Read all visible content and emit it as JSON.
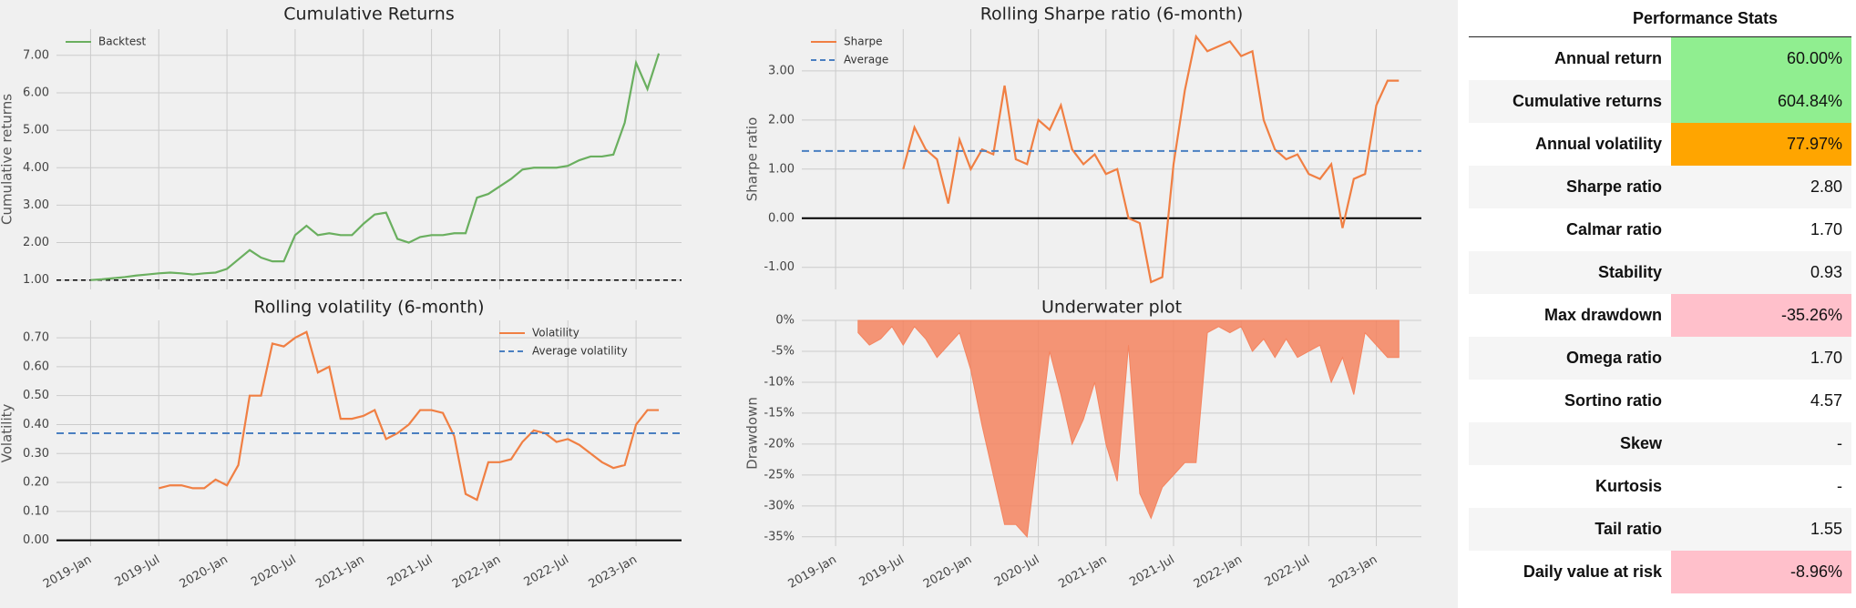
{
  "chart_data": [
    {
      "type": "line",
      "title": "Cumulative Returns",
      "ylabel": "Cumulative returns",
      "legend": "upper left",
      "grid": true,
      "baseline": 1,
      "x": [
        "2019-01",
        "2019-02",
        "2019-03",
        "2019-04",
        "2019-05",
        "2019-06",
        "2019-07",
        "2019-08",
        "2019-09",
        "2019-10",
        "2019-11",
        "2019-12",
        "2020-01",
        "2020-02",
        "2020-03",
        "2020-04",
        "2020-05",
        "2020-06",
        "2020-07",
        "2020-08",
        "2020-09",
        "2020-10",
        "2020-11",
        "2020-12",
        "2021-01",
        "2021-02",
        "2021-03",
        "2021-04",
        "2021-05",
        "2021-06",
        "2021-07",
        "2021-08",
        "2021-09",
        "2021-10",
        "2021-11",
        "2021-12",
        "2022-01",
        "2022-02",
        "2022-03",
        "2022-04",
        "2022-05",
        "2022-06",
        "2022-07",
        "2022-08",
        "2022-09",
        "2022-10",
        "2022-11",
        "2022-12",
        "2023-01",
        "2023-02",
        "2023-03"
      ],
      "series": [
        {
          "name": "Backtest",
          "color": "#6aaf5f",
          "values": [
            1.0,
            1.02,
            1.05,
            1.08,
            1.12,
            1.15,
            1.18,
            1.2,
            1.18,
            1.15,
            1.18,
            1.2,
            1.3,
            1.55,
            1.8,
            1.6,
            1.5,
            1.5,
            2.2,
            2.45,
            2.2,
            2.25,
            2.2,
            2.2,
            2.5,
            2.75,
            2.8,
            2.1,
            2.0,
            2.15,
            2.2,
            2.2,
            2.25,
            2.25,
            3.2,
            3.3,
            3.5,
            3.7,
            3.95,
            4.0,
            4.0,
            4.0,
            4.05,
            4.2,
            4.3,
            4.3,
            4.35,
            5.2,
            6.8,
            6.1,
            7.05
          ]
        }
      ],
      "xlim": [
        "2018-10",
        "2023-05"
      ],
      "xticks": [
        "2019-01",
        "2019-07",
        "2020-01",
        "2020-07",
        "2021-01",
        "2021-07",
        "2022-01",
        "2022-07",
        "2023-01"
      ],
      "ylim": [
        0.75,
        7.7
      ],
      "yticks": [
        {
          "value": 1,
          "label": "1.00"
        },
        {
          "value": 2,
          "label": "2.00"
        },
        {
          "value": 3,
          "label": "3.00"
        },
        {
          "value": 4,
          "label": "4.00"
        },
        {
          "value": 5,
          "label": "5.00"
        },
        {
          "value": 6,
          "label": "6.00"
        },
        {
          "value": 7,
          "label": "7.00"
        }
      ]
    },
    {
      "type": "line",
      "title": "Rolling volatility (6-month)",
      "ylabel": "Volatility",
      "legend": "upper right",
      "grid": true,
      "zero_line": true,
      "x": [
        "2019-01",
        "2019-02",
        "2019-03",
        "2019-04",
        "2019-05",
        "2019-06",
        "2019-07",
        "2019-08",
        "2019-09",
        "2019-10",
        "2019-11",
        "2019-12",
        "2020-01",
        "2020-02",
        "2020-03",
        "2020-04",
        "2020-05",
        "2020-06",
        "2020-07",
        "2020-08",
        "2020-09",
        "2020-10",
        "2020-11",
        "2020-12",
        "2021-01",
        "2021-02",
        "2021-03",
        "2021-04",
        "2021-05",
        "2021-06",
        "2021-07",
        "2021-08",
        "2021-09",
        "2021-10",
        "2021-11",
        "2021-12",
        "2022-01",
        "2022-02",
        "2022-03",
        "2022-04",
        "2022-05",
        "2022-06",
        "2022-07",
        "2022-08",
        "2022-09",
        "2022-10",
        "2022-11",
        "2022-12",
        "2023-01",
        "2023-02",
        "2023-03"
      ],
      "series": [
        {
          "name": "Volatility",
          "color": "#f07f43",
          "values": [
            null,
            null,
            null,
            null,
            null,
            null,
            0.18,
            0.19,
            0.19,
            0.18,
            0.18,
            0.21,
            0.19,
            0.26,
            0.5,
            0.5,
            0.68,
            0.67,
            0.7,
            0.72,
            0.58,
            0.6,
            0.42,
            0.42,
            0.43,
            0.45,
            0.35,
            0.37,
            0.4,
            0.45,
            0.45,
            0.44,
            0.36,
            0.16,
            0.14,
            0.27,
            0.27,
            0.28,
            0.34,
            0.38,
            0.37,
            0.34,
            0.35,
            0.33,
            0.3,
            0.27,
            0.25,
            0.26,
            0.4,
            0.45,
            0.45
          ]
        },
        {
          "name": "Average volatility",
          "color": "#4a7fc1",
          "style": "dashed",
          "value": 0.37
        }
      ],
      "xlim": [
        "2018-10",
        "2023-05"
      ],
      "xticks": [
        {
          "value": "2019-01",
          "label": "2019-Jan"
        },
        {
          "value": "2019-07",
          "label": "2019-Jul"
        },
        {
          "value": "2020-01",
          "label": "2020-Jan"
        },
        {
          "value": "2020-07",
          "label": "2020-Jul"
        },
        {
          "value": "2021-01",
          "label": "2021-Jan"
        },
        {
          "value": "2021-07",
          "label": "2021-Jul"
        },
        {
          "value": "2022-01",
          "label": "2022-Jan"
        },
        {
          "value": "2022-07",
          "label": "2022-Jul"
        },
        {
          "value": "2023-01",
          "label": "2023-Jan"
        }
      ],
      "ylim": [
        -0.02,
        0.76
      ],
      "yticks": [
        {
          "value": 0,
          "label": "0.00"
        },
        {
          "value": 0.1,
          "label": "0.10"
        },
        {
          "value": 0.2,
          "label": "0.20"
        },
        {
          "value": 0.3,
          "label": "0.30"
        },
        {
          "value": 0.4,
          "label": "0.40"
        },
        {
          "value": 0.5,
          "label": "0.50"
        },
        {
          "value": 0.6,
          "label": "0.60"
        },
        {
          "value": 0.7,
          "label": "0.70"
        }
      ]
    },
    {
      "type": "line",
      "title": "Rolling Sharpe ratio (6-month)",
      "ylabel": "Sharpe ratio",
      "legend": "upper left",
      "grid": true,
      "zero_line": true,
      "x": [
        "2019-01",
        "2019-02",
        "2019-03",
        "2019-04",
        "2019-05",
        "2019-06",
        "2019-07",
        "2019-08",
        "2019-09",
        "2019-10",
        "2019-11",
        "2019-12",
        "2020-01",
        "2020-02",
        "2020-03",
        "2020-04",
        "2020-05",
        "2020-06",
        "2020-07",
        "2020-08",
        "2020-09",
        "2020-10",
        "2020-11",
        "2020-12",
        "2021-01",
        "2021-02",
        "2021-03",
        "2021-04",
        "2021-05",
        "2021-06",
        "2021-07",
        "2021-08",
        "2021-09",
        "2021-10",
        "2021-11",
        "2021-12",
        "2022-01",
        "2022-02",
        "2022-03",
        "2022-04",
        "2022-05",
        "2022-06",
        "2022-07",
        "2022-08",
        "2022-09",
        "2022-10",
        "2022-11",
        "2022-12",
        "2023-01",
        "2023-02",
        "2023-03"
      ],
      "series": [
        {
          "name": "Sharpe",
          "color": "#f07f43",
          "values": [
            null,
            null,
            null,
            null,
            null,
            null,
            1.0,
            1.85,
            1.4,
            1.2,
            0.3,
            1.6,
            1.0,
            1.4,
            1.3,
            2.7,
            1.2,
            1.1,
            2.0,
            1.8,
            2.3,
            1.4,
            1.1,
            1.3,
            0.9,
            1.0,
            0.0,
            -0.1,
            -1.3,
            -1.2,
            1.1,
            2.6,
            3.7,
            3.4,
            3.5,
            3.6,
            3.3,
            3.4,
            2.0,
            1.4,
            1.2,
            1.3,
            0.9,
            0.8,
            1.1,
            -0.2,
            0.8,
            0.9,
            2.3,
            2.8,
            2.8
          ]
        },
        {
          "name": "Average",
          "color": "#4a7fc1",
          "style": "dashed",
          "value": 1.37
        }
      ],
      "xlim": [
        "2018-10",
        "2023-05"
      ],
      "xticks": [
        "2019-01",
        "2019-07",
        "2020-01",
        "2020-07",
        "2021-01",
        "2021-07",
        "2022-01",
        "2022-07",
        "2023-01"
      ],
      "ylim": [
        -1.45,
        3.85
      ],
      "yticks": [
        {
          "value": -1,
          "label": "-1.00"
        },
        {
          "value": 0,
          "label": "0.00"
        },
        {
          "value": 1,
          "label": "1.00"
        },
        {
          "value": 2,
          "label": "2.00"
        },
        {
          "value": 3,
          "label": "3.00"
        }
      ]
    },
    {
      "type": "area",
      "title": "Underwater plot",
      "ylabel": "Drawdown",
      "grid": true,
      "x": [
        "2019-01",
        "2019-02",
        "2019-03",
        "2019-04",
        "2019-05",
        "2019-06",
        "2019-07",
        "2019-08",
        "2019-09",
        "2019-10",
        "2019-11",
        "2019-12",
        "2020-01",
        "2020-02",
        "2020-03",
        "2020-04",
        "2020-05",
        "2020-06",
        "2020-07",
        "2020-08",
        "2020-09",
        "2020-10",
        "2020-11",
        "2020-12",
        "2021-01",
        "2021-02",
        "2021-03",
        "2021-04",
        "2021-05",
        "2021-06",
        "2021-07",
        "2021-08",
        "2021-09",
        "2021-10",
        "2021-11",
        "2021-12",
        "2022-01",
        "2022-02",
        "2022-03",
        "2022-04",
        "2022-05",
        "2022-06",
        "2022-07",
        "2022-08",
        "2022-09",
        "2022-10",
        "2022-11",
        "2022-12",
        "2023-01",
        "2023-02",
        "2023-03"
      ],
      "series": [
        {
          "name": "Drawdown",
          "color": "#f4845f",
          "values": [
            null,
            null,
            -2,
            -4,
            -3,
            -1,
            -4,
            -1,
            -3,
            -6,
            -4,
            -2,
            -8,
            -17,
            -25,
            -33,
            -33,
            -35,
            -20,
            -5,
            -12,
            -20,
            -16,
            -10,
            -20,
            -26,
            -4,
            -28,
            -32,
            -27,
            -25,
            -23,
            -23,
            -2,
            -1,
            -2,
            -1,
            -5,
            -3,
            -6,
            -3,
            -6,
            -5,
            -4,
            -10,
            -6,
            -12,
            -2,
            -4,
            -6,
            -6
          ]
        }
      ],
      "xlim": [
        "2018-10",
        "2023-05"
      ],
      "xticks": [
        {
          "value": "2019-01",
          "label": "2019-Jan"
        },
        {
          "value": "2019-07",
          "label": "2019-Jul"
        },
        {
          "value": "2020-01",
          "label": "2020-Jan"
        },
        {
          "value": "2020-07",
          "label": "2020-Jul"
        },
        {
          "value": "2021-01",
          "label": "2021-Jan"
        },
        {
          "value": "2021-07",
          "label": "2021-Jul"
        },
        {
          "value": "2022-01",
          "label": "2022-Jan"
        },
        {
          "value": "2022-07",
          "label": "2022-Jul"
        },
        {
          "value": "2023-01",
          "label": "2023-Jan"
        }
      ],
      "ylim": [
        -36.5,
        0
      ],
      "yticks": [
        {
          "value": 0,
          "label": "0%"
        },
        {
          "value": -5,
          "label": "-5%"
        },
        {
          "value": -10,
          "label": "-10%"
        },
        {
          "value": -15,
          "label": "-15%"
        },
        {
          "value": -20,
          "label": "-20%"
        },
        {
          "value": -25,
          "label": "-25%"
        },
        {
          "value": -30,
          "label": "-30%"
        },
        {
          "value": -35,
          "label": "-35%"
        }
      ]
    }
  ],
  "table": {
    "header": "Performance Stats",
    "rows": [
      {
        "label": "Annual return",
        "value": "60.00%",
        "color": "#90ee90"
      },
      {
        "label": "Cumulative returns",
        "value": "604.84%",
        "color": "#90ee90"
      },
      {
        "label": "Annual volatility",
        "value": "77.97%",
        "color": "#ffa500"
      },
      {
        "label": "Sharpe ratio",
        "value": "2.80"
      },
      {
        "label": "Calmar ratio",
        "value": "1.70"
      },
      {
        "label": "Stability",
        "value": "0.93"
      },
      {
        "label": "Max drawdown",
        "value": "-35.26%",
        "color": "#ffc0cb"
      },
      {
        "label": "Omega ratio",
        "value": "1.70"
      },
      {
        "label": "Sortino ratio",
        "value": "4.57"
      },
      {
        "label": "Skew",
        "value": "-"
      },
      {
        "label": "Kurtosis",
        "value": "-"
      },
      {
        "label": "Tail ratio",
        "value": "1.55"
      },
      {
        "label": "Daily value at risk",
        "value": "-8.96%",
        "color": "#ffc0cb"
      }
    ]
  }
}
